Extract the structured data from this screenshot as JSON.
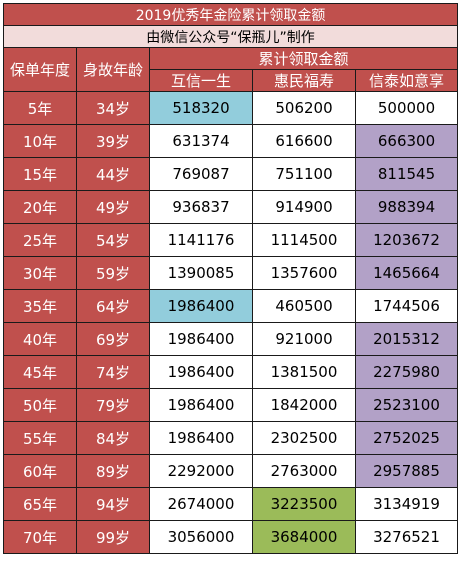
{
  "title": "2019优秀年金险累计领取金额",
  "subtitle": "由微信公众号“保瓶儿”制作",
  "headers": {
    "col_year": "保单年度",
    "col_age": "身故年龄",
    "group": "累计领取金额",
    "products": [
      "互信一生",
      "惠民福寿",
      "信泰如意享"
    ]
  },
  "colors": {
    "header_red": "#c0504d",
    "subtitle_pink": "#f2dcdb",
    "highlight_blue": "#92cddc",
    "highlight_purple": "#b2a1c7",
    "highlight_green": "#9bbb59"
  },
  "rows": [
    {
      "year": "5年",
      "age": "34岁",
      "v": [
        "518320",
        "506200",
        "500000"
      ],
      "hl": [
        "blue",
        "",
        ""
      ]
    },
    {
      "year": "10年",
      "age": "39岁",
      "v": [
        "631374",
        "616600",
        "666300"
      ],
      "hl": [
        "",
        "",
        "purple"
      ]
    },
    {
      "year": "15年",
      "age": "44岁",
      "v": [
        "769087",
        "751100",
        "811545"
      ],
      "hl": [
        "",
        "",
        "purple"
      ]
    },
    {
      "year": "20年",
      "age": "49岁",
      "v": [
        "936837",
        "914900",
        "988394"
      ],
      "hl": [
        "",
        "",
        "purple"
      ]
    },
    {
      "year": "25年",
      "age": "54岁",
      "v": [
        "1141176",
        "1114500",
        "1203672"
      ],
      "hl": [
        "",
        "",
        "purple"
      ]
    },
    {
      "year": "30年",
      "age": "59岁",
      "v": [
        "1390085",
        "1357600",
        "1465664"
      ],
      "hl": [
        "",
        "",
        "purple"
      ]
    },
    {
      "year": "35年",
      "age": "64岁",
      "v": [
        "1986400",
        "460500",
        "1744506"
      ],
      "hl": [
        "blue",
        "",
        ""
      ]
    },
    {
      "year": "40年",
      "age": "69岁",
      "v": [
        "1986400",
        "921000",
        "2015312"
      ],
      "hl": [
        "",
        "",
        "purple"
      ]
    },
    {
      "year": "45年",
      "age": "74岁",
      "v": [
        "1986400",
        "1381500",
        "2275980"
      ],
      "hl": [
        "",
        "",
        "purple"
      ]
    },
    {
      "year": "50年",
      "age": "79岁",
      "v": [
        "1986400",
        "1842000",
        "2523100"
      ],
      "hl": [
        "",
        "",
        "purple"
      ]
    },
    {
      "year": "55年",
      "age": "84岁",
      "v": [
        "1986400",
        "2302500",
        "2752025"
      ],
      "hl": [
        "",
        "",
        "purple"
      ]
    },
    {
      "year": "60年",
      "age": "89岁",
      "v": [
        "2292000",
        "2763000",
        "2957885"
      ],
      "hl": [
        "",
        "",
        "purple"
      ]
    },
    {
      "year": "65年",
      "age": "94岁",
      "v": [
        "2674000",
        "3223500",
        "3134919"
      ],
      "hl": [
        "",
        "green",
        ""
      ]
    },
    {
      "year": "70年",
      "age": "99岁",
      "v": [
        "3056000",
        "3684000",
        "3276521"
      ],
      "hl": [
        "",
        "green",
        ""
      ]
    }
  ]
}
